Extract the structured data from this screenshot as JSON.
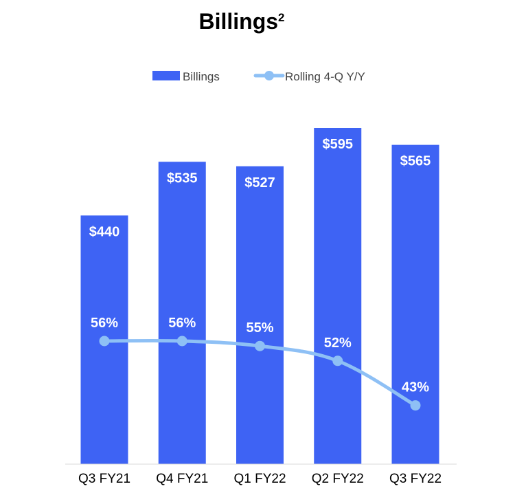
{
  "chart_data": {
    "type": "bar",
    "title": "Billings",
    "title_superscript": "2",
    "categories": [
      "Q3 FY21",
      "Q4 FY21",
      "Q1 FY22",
      "Q2 FY22",
      "Q3 FY22"
    ],
    "series": [
      {
        "name": "Billings",
        "type": "bar",
        "values": [
          440,
          535,
          527,
          595,
          565
        ],
        "labels": [
          "$440",
          "$535",
          "$527",
          "$595",
          "$565"
        ],
        "color": "#3e63f4"
      },
      {
        "name": "Rolling 4-Q Y/Y",
        "type": "line",
        "values": [
          56,
          56,
          55,
          52,
          43
        ],
        "labels": [
          "56%",
          "56%",
          "55%",
          "52%",
          "43%"
        ],
        "color": "#8ec0f5"
      }
    ],
    "legend_position": "top",
    "grid": false
  }
}
